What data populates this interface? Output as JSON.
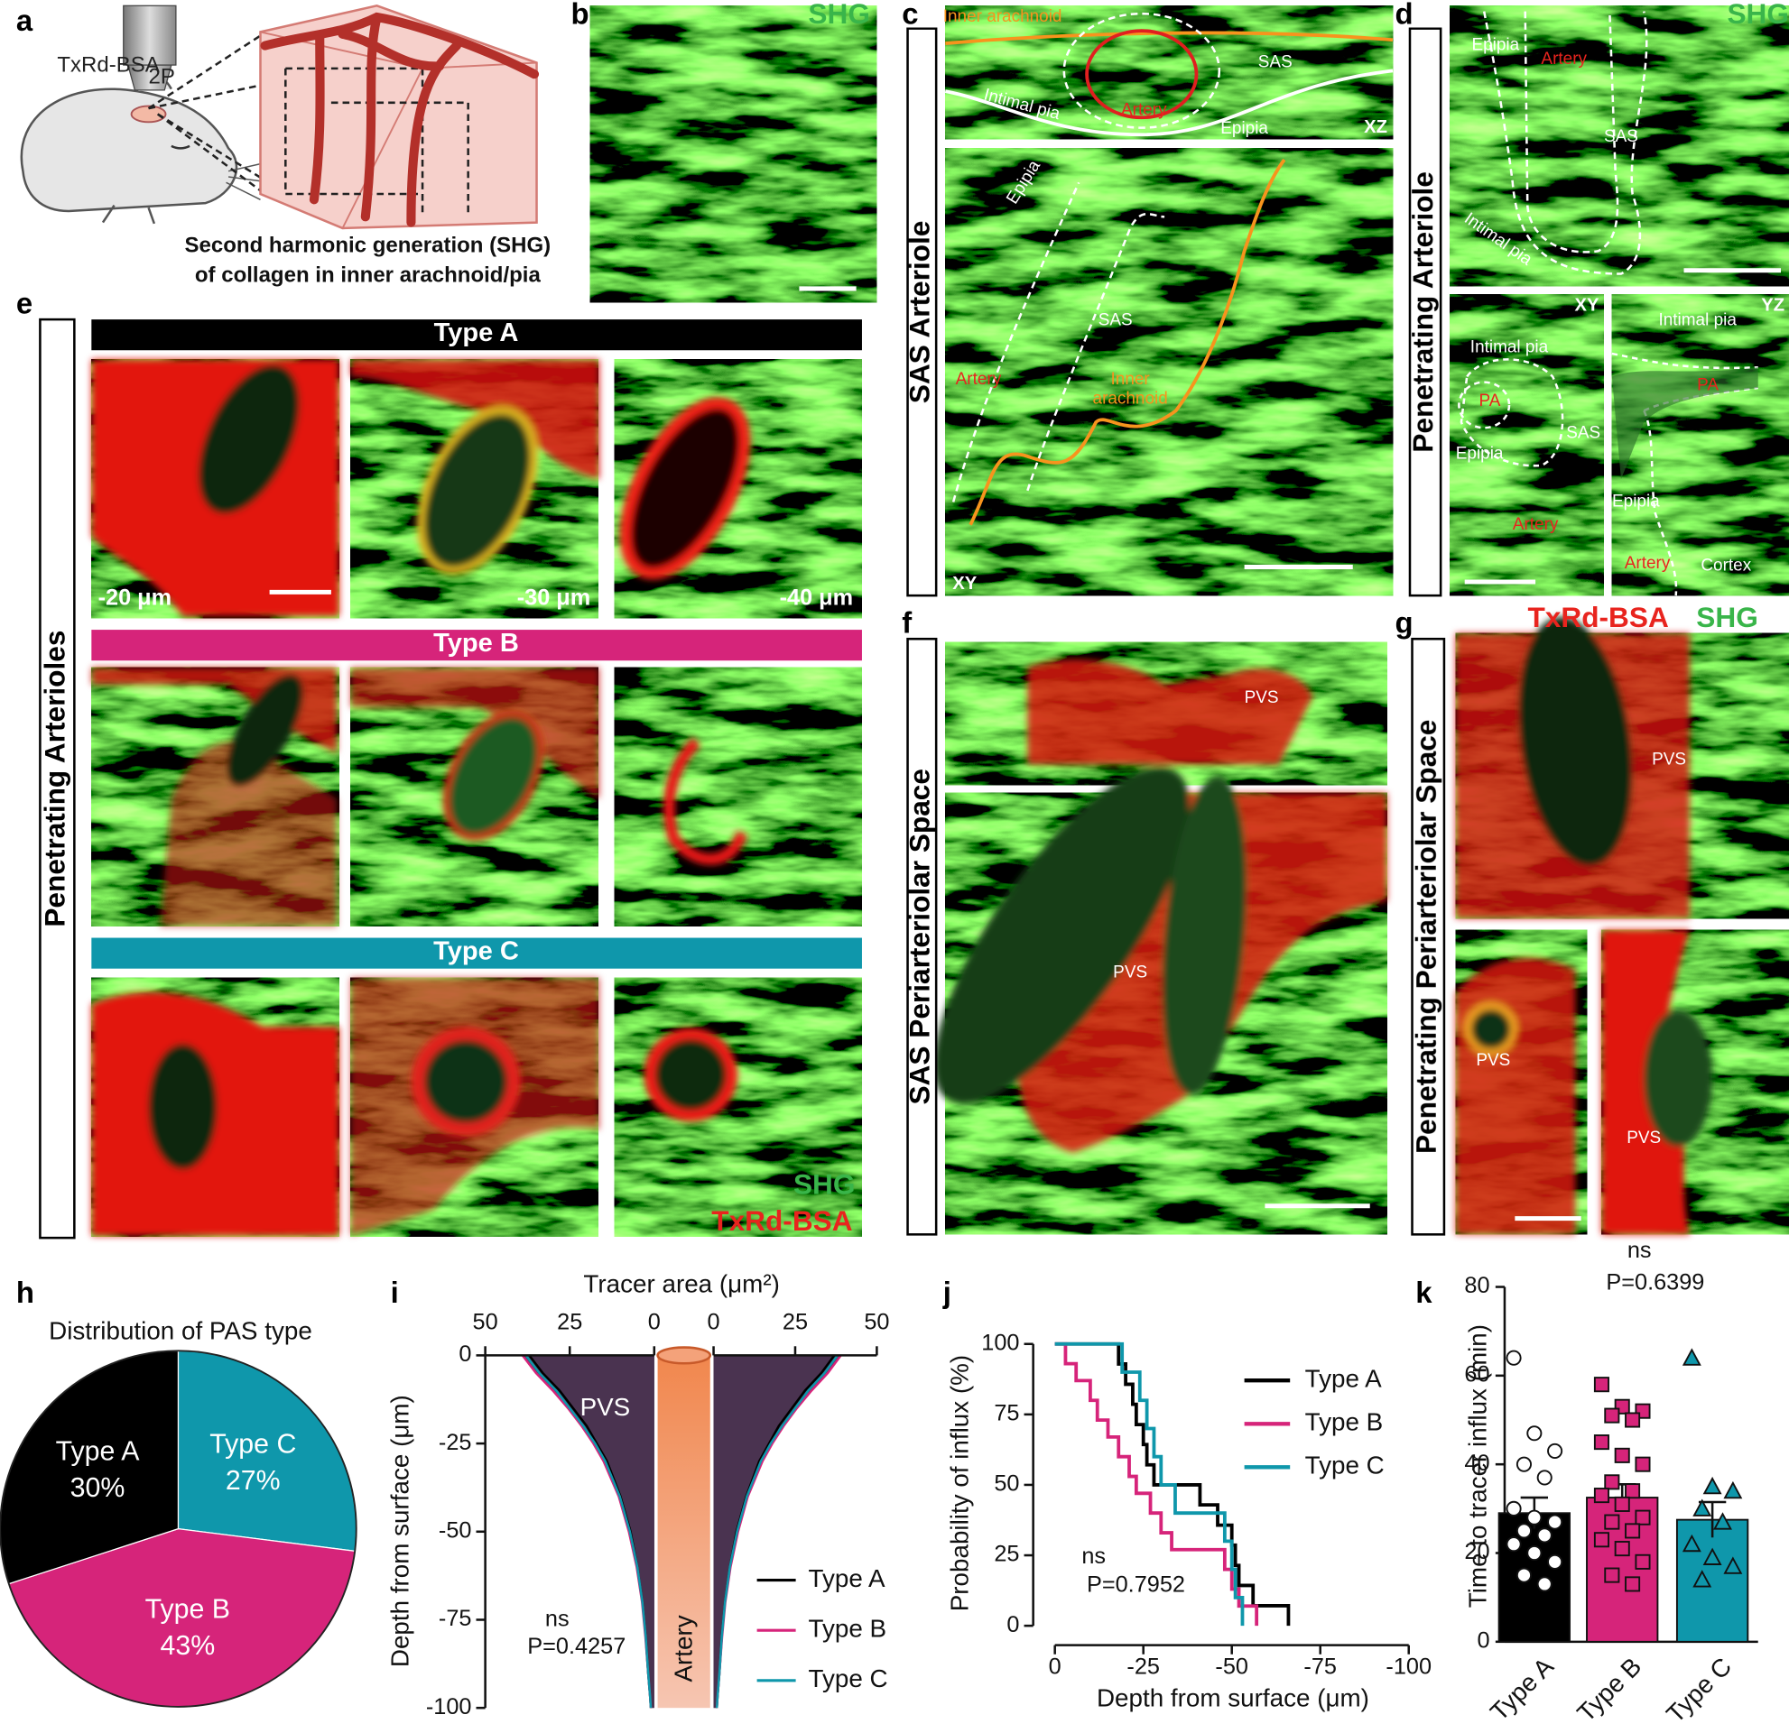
{
  "panels": {
    "a": {
      "letter": "a",
      "labels": [
        "TxRd-BSA",
        "2P"
      ],
      "caption": [
        "Second harmonic generation (SHG)",
        "of collagen in inner arachnoid/pia"
      ]
    },
    "b": {
      "letter": "b",
      "channel": "SHG"
    },
    "c": {
      "letter": "c",
      "side_label": "SAS Arteriole",
      "xz": {
        "view": "XZ",
        "labels": [
          "Inner arachnoid",
          "SAS",
          "Artery",
          "Intimal pia",
          "Epipia"
        ]
      },
      "xy": {
        "view": "XY",
        "labels": [
          "Epipia",
          "SAS",
          "Artery",
          "Inner",
          "arachnoid"
        ]
      }
    },
    "d": {
      "letter": "d",
      "side_label": "Penetrating Arteriole",
      "channel": "SHG",
      "top": {
        "labels": [
          "Epipia",
          "Artery",
          "SAS",
          "Intimal pia"
        ]
      },
      "xy": {
        "view": "XY",
        "labels": [
          "Intimal pia",
          "PA",
          "SAS",
          "Epipia",
          "Artery"
        ]
      },
      "yz": {
        "view": "YZ",
        "labels": [
          "Intimal pia",
          "PA",
          "Epipia",
          "Artery",
          "Cortex"
        ]
      }
    },
    "e": {
      "letter": "e",
      "side_label": "Penetrating Arterioles",
      "rows": [
        "Type A",
        "Type B",
        "Type C"
      ],
      "depths": [
        "-20 μm",
        "-30 μm",
        "-40 μm"
      ],
      "channels": [
        "SHG",
        "TxRd-BSA"
      ]
    },
    "f": {
      "letter": "f",
      "side_label": "SAS Periarteriolar Space",
      "labels": [
        "PVS",
        "PVS"
      ]
    },
    "g": {
      "letter": "g",
      "side_label": "Penetrating Periarteriolar Space",
      "channels": [
        "TxRd-BSA",
        "SHG"
      ],
      "labels": [
        "PVS",
        "PVS",
        "PVS"
      ]
    }
  },
  "chart_data": [
    {
      "type": "pie",
      "panel_label": "h",
      "title": "Distribution of PAS type",
      "categories": [
        "Type C",
        "Type B",
        "Type A"
      ],
      "values": [
        27,
        43,
        30
      ],
      "value_labels": [
        "27%",
        "43%",
        "30%"
      ],
      "colors": [
        "#0f97ab",
        "#d6247a",
        "#000000"
      ]
    },
    {
      "type": "funnel",
      "panel_label": "i",
      "xlabel": "Tracer area (μm²)",
      "ylabel": "Depth from surface (μm)",
      "y": [
        0,
        -5,
        -10,
        -15,
        -20,
        -25,
        -30,
        -40,
        -50,
        -60,
        -70,
        -80,
        -90,
        -97,
        -100
      ],
      "series": [
        {
          "name": "Type A",
          "color": "#000000",
          "values": [
            37,
            33,
            28,
            24,
            20,
            17,
            14,
            10,
            7,
            5,
            3.5,
            2.5,
            1.8,
            1.2,
            1
          ]
        },
        {
          "name": "Type B",
          "color": "#d6247a",
          "values": [
            39,
            35,
            30,
            25.5,
            21.5,
            18,
            15,
            10.5,
            7.5,
            5.2,
            3.6,
            2.6,
            1.8,
            1.2,
            1
          ]
        },
        {
          "name": "Type C",
          "color": "#0f97ab",
          "values": [
            38,
            34,
            29,
            25,
            21,
            17.5,
            14.5,
            10.2,
            7.2,
            5,
            3.5,
            2.5,
            1.8,
            1.2,
            1
          ]
        }
      ],
      "area_color": "#4a3350",
      "xlim": [
        0,
        50
      ],
      "xticks": [
        0,
        25,
        50
      ],
      "ylim": [
        -100,
        0
      ],
      "yticks": [
        0,
        -25,
        -50,
        -75,
        -100
      ],
      "annotations": [
        "PVS",
        "Artery",
        "ns",
        "P=0.4257"
      ]
    },
    {
      "type": "step",
      "panel_label": "j",
      "xlabel": "Depth from surface (μm)",
      "ylabel": "Probability of influx (%)",
      "series": [
        {
          "name": "Type A",
          "color": "#000000",
          "x": [
            0,
            -18,
            -20,
            -22,
            -23,
            -25,
            -26,
            -28,
            -41,
            -46,
            -50,
            -51,
            -52,
            -56,
            -66
          ],
          "values": [
            100,
            92.9,
            85.7,
            78.6,
            71.4,
            64.3,
            57.1,
            50,
            42.9,
            35.7,
            28.6,
            21.4,
            14.3,
            7.1,
            0
          ]
        },
        {
          "name": "Type B",
          "color": "#d6247a",
          "x": [
            0,
            -3,
            -6,
            -10,
            -12,
            -15,
            -18,
            -21,
            -23,
            -27,
            -30,
            -33,
            -48,
            -50,
            -52,
            -57
          ],
          "values": [
            100,
            93,
            87,
            80,
            73,
            67,
            60,
            53,
            47,
            40,
            33,
            27,
            20,
            13,
            7,
            0
          ]
        },
        {
          "name": "Type C",
          "color": "#0f97ab",
          "x": [
            0,
            -19,
            -24,
            -26,
            -28,
            -30,
            -34,
            -48,
            -50,
            -51,
            -53
          ],
          "values": [
            100,
            90,
            80,
            70,
            60,
            50,
            40,
            30,
            20,
            10,
            0
          ]
        }
      ],
      "xlim": [
        0,
        -100
      ],
      "xticks": [
        0,
        -25,
        -50,
        -75,
        -100
      ],
      "ylim": [
        0,
        100
      ],
      "yticks": [
        0,
        25,
        50,
        75,
        100
      ],
      "annotations": [
        "ns",
        "P=0.7952"
      ]
    },
    {
      "type": "bar",
      "panel_label": "k",
      "ylabel": "Time to tracer influx (min)",
      "categories": [
        "Type A",
        "Type B",
        "Type C"
      ],
      "values": [
        29,
        32.5,
        27.5
      ],
      "errors": [
        3.5,
        3,
        4
      ],
      "colors": [
        "#000000",
        "#d6247a",
        "#0f97ab"
      ],
      "markers": [
        "circle",
        "square",
        "triangle"
      ],
      "points": [
        [
          64,
          47,
          43,
          40,
          37,
          30,
          28,
          27,
          25,
          24,
          22,
          20,
          18,
          15,
          13
        ],
        [
          58,
          53,
          52,
          51,
          50,
          45,
          42,
          40,
          36,
          34,
          33,
          31,
          28,
          27,
          25,
          23,
          21,
          18,
          15,
          13
        ],
        [
          64,
          35,
          34,
          30,
          27,
          22,
          19,
          17,
          14
        ]
      ],
      "ylim": [
        0,
        80
      ],
      "yticks": [
        0,
        20,
        40,
        60,
        80
      ],
      "annotations": [
        "ns",
        "P=0.6399"
      ]
    }
  ]
}
